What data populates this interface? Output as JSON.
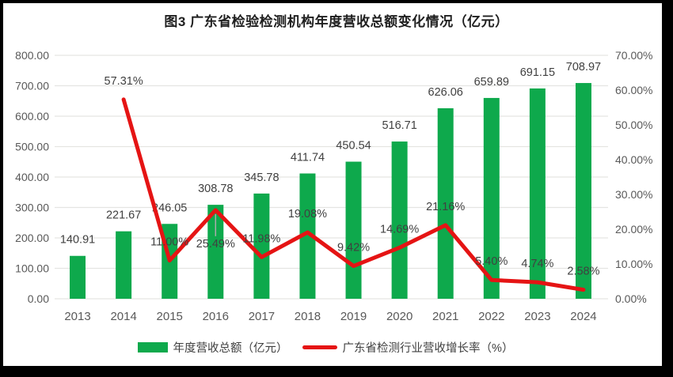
{
  "title": "图3 广东省检验检测机构年度营收总额变化情况（亿元）",
  "legend": {
    "bar_label": "年度营收总额（亿元）",
    "line_label": "广东省检测行业营收增长率（%）"
  },
  "colors": {
    "bar": "#0EA94C",
    "line": "#E51414",
    "grid": "#E5E5E2",
    "axis_text": "#595959",
    "label_text": "#404040",
    "leader": "#ABABAB"
  },
  "chart_data": {
    "type": "bar",
    "subtype": "combo-bar-line",
    "title": "图3 广东省检验检测机构年度营收总额变化情况（亿元）",
    "categories": [
      "2013",
      "2014",
      "2015",
      "2016",
      "2017",
      "2018",
      "2019",
      "2020",
      "2021",
      "2022",
      "2023",
      "2024"
    ],
    "series": [
      {
        "name": "年度营收总额（亿元）",
        "type": "bar",
        "axis": "left",
        "values": [
          140.91,
          221.67,
          246.05,
          308.78,
          345.78,
          411.74,
          450.54,
          516.71,
          626.06,
          659.89,
          691.15,
          708.97
        ],
        "labels": [
          "140.91",
          "221.67",
          "246.05",
          "308.78",
          "345.78",
          "411.74",
          "450.54",
          "516.71",
          "626.06",
          "659.89",
          "691.15",
          "708.97"
        ]
      },
      {
        "name": "广东省检测行业营收增长率（%）",
        "type": "line",
        "axis": "right",
        "values": [
          null,
          57.31,
          11.0,
          25.49,
          11.98,
          19.08,
          9.42,
          14.69,
          21.16,
          5.4,
          4.74,
          2.58
        ],
        "labels": [
          null,
          "57.31%",
          "11.00%",
          "25.49%",
          "11.98%",
          "19.08%",
          "9.42%",
          "14.69%",
          "21.16%",
          "5.40%",
          "4.74%",
          "2.58%"
        ]
      }
    ],
    "left_axis": {
      "min": 0,
      "max": 800,
      "step": 100,
      "tick_labels": [
        "0.00",
        "100.00",
        "200.00",
        "300.00",
        "400.00",
        "500.00",
        "600.00",
        "700.00",
        "800.00"
      ]
    },
    "right_axis": {
      "min": 0,
      "max": 70,
      "step": 10,
      "tick_labels": [
        "0.00%",
        "10.00%",
        "20.00%",
        "30.00%",
        "40.00%",
        "50.00%",
        "60.00%",
        "70.00%"
      ]
    },
    "grid": true,
    "legend_position": "bottom"
  }
}
